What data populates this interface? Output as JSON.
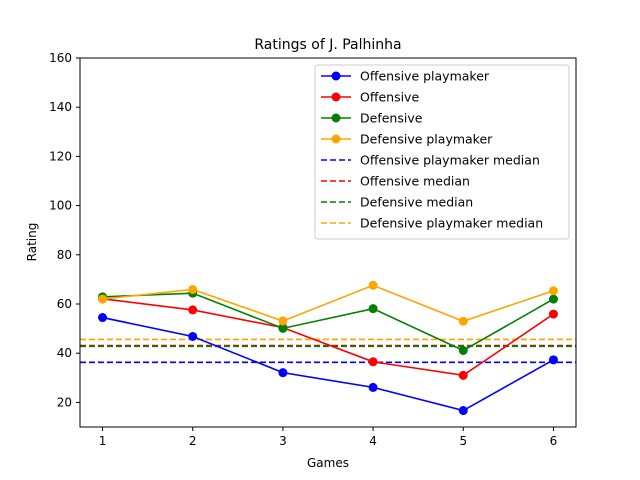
{
  "chart_data": {
    "type": "line",
    "title": "Ratings of J. Palhinha",
    "xlabel": "Games",
    "ylabel": "Rating",
    "x": [
      1,
      2,
      3,
      4,
      5,
      6
    ],
    "xlim": [
      0.75,
      6.25
    ],
    "ylim": [
      10,
      160
    ],
    "xticks": [
      1,
      2,
      3,
      4,
      5,
      6
    ],
    "yticks": [
      20,
      40,
      60,
      80,
      100,
      120,
      140,
      160
    ],
    "grid": false,
    "legend_position": "top-right",
    "series": [
      {
        "name": "Offensive playmaker",
        "color": "#0000ff",
        "values": [
          54.5,
          46.8,
          32.1,
          26.1,
          16.7,
          37.3
        ]
      },
      {
        "name": "Offensive",
        "color": "#ff0000",
        "values": [
          62.1,
          57.6,
          50.4,
          36.5,
          31.0,
          55.9
        ]
      },
      {
        "name": "Defensive",
        "color": "#008000",
        "values": [
          62.9,
          64.4,
          50.1,
          58.1,
          41.1,
          62.0
        ]
      },
      {
        "name": "Defensive playmaker",
        "color": "#ffa500",
        "values": [
          62.0,
          65.9,
          53.1,
          67.6,
          53.0,
          65.4
        ]
      }
    ],
    "medians": [
      {
        "name": "Offensive playmaker median",
        "color": "#0000ff",
        "value": 36.3
      },
      {
        "name": "Offensive median",
        "color": "#ff0000",
        "value": 43.1
      },
      {
        "name": "Defensive median",
        "color": "#008000",
        "value": 42.8
      },
      {
        "name": "Defensive playmaker median",
        "color": "#ffa500",
        "value": 45.6
      }
    ]
  }
}
